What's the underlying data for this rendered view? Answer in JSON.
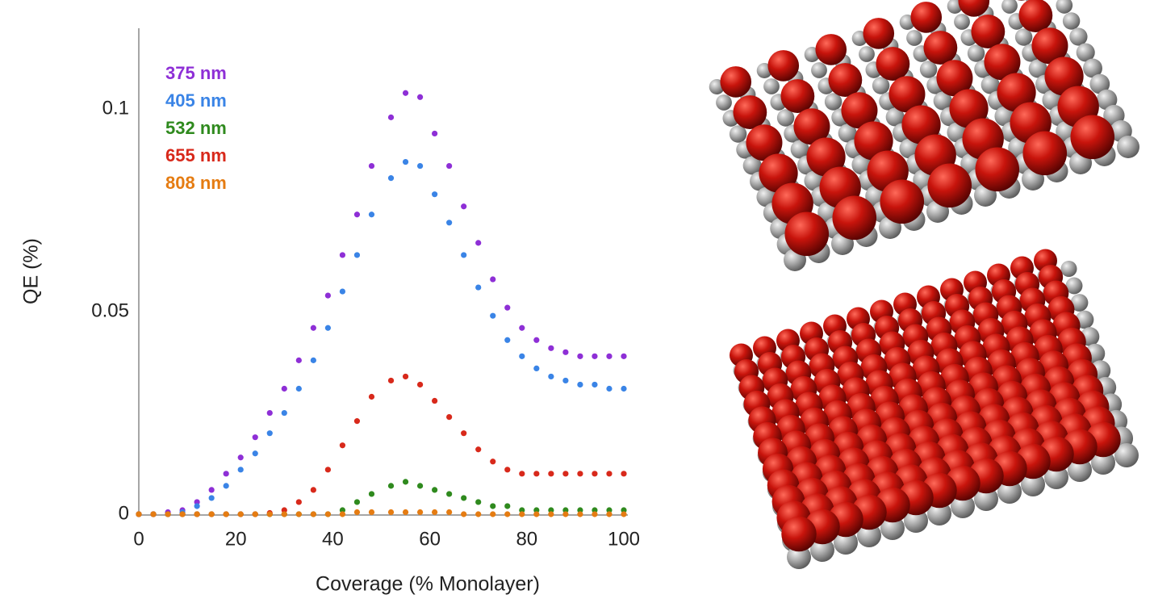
{
  "chart_data": {
    "type": "scatter",
    "xlabel": "Coverage (% Monolayer)",
    "ylabel": "QE (%)",
    "x": [
      0,
      3,
      6,
      9,
      12,
      15,
      18,
      21,
      24,
      27,
      30,
      33,
      36,
      39,
      42,
      45,
      48,
      52,
      55,
      58,
      61,
      64,
      67,
      70,
      73,
      76,
      79,
      82,
      85,
      88,
      91,
      94,
      97,
      100
    ],
    "series": [
      {
        "name": "375 nm",
        "color": "#8e2fd6",
        "values": [
          0,
          0,
          0.0005,
          0.001,
          0.003,
          0.006,
          0.01,
          0.014,
          0.019,
          0.025,
          0.031,
          0.038,
          0.046,
          0.054,
          0.064,
          0.074,
          0.086,
          0.098,
          0.104,
          0.103,
          0.094,
          0.086,
          0.076,
          0.067,
          0.058,
          0.051,
          0.046,
          0.043,
          0.041,
          0.04,
          0.039,
          0.039,
          0.039,
          0.039
        ]
      },
      {
        "name": "405 nm",
        "color": "#3a84e6",
        "values": [
          0,
          0,
          0,
          0.0005,
          0.002,
          0.004,
          0.007,
          0.011,
          0.015,
          0.02,
          0.025,
          0.031,
          0.038,
          0.046,
          0.055,
          0.064,
          0.074,
          0.083,
          0.087,
          0.086,
          0.079,
          0.072,
          0.064,
          0.056,
          0.049,
          0.043,
          0.039,
          0.036,
          0.034,
          0.033,
          0.032,
          0.032,
          0.031,
          0.031
        ]
      },
      {
        "name": "532 nm",
        "color": "#2f8a1e",
        "values": [
          0,
          0,
          0,
          0,
          0,
          0,
          0,
          0,
          0,
          0,
          0,
          0,
          0,
          0,
          0.001,
          0.003,
          0.005,
          0.007,
          0.008,
          0.007,
          0.006,
          0.005,
          0.004,
          0.003,
          0.002,
          0.002,
          0.001,
          0.001,
          0.001,
          0.001,
          0.001,
          0.001,
          0.001,
          0.001
        ]
      },
      {
        "name": "655 nm",
        "color": "#d8291b",
        "values": [
          0,
          0,
          0,
          0,
          0,
          0,
          0,
          0,
          0,
          0.0003,
          0.001,
          0.003,
          0.006,
          0.011,
          0.017,
          0.023,
          0.029,
          0.033,
          0.034,
          0.032,
          0.028,
          0.024,
          0.02,
          0.016,
          0.013,
          0.011,
          0.01,
          0.01,
          0.01,
          0.01,
          0.01,
          0.01,
          0.01,
          0.01
        ]
      },
      {
        "name": "808 nm",
        "color": "#e57c12",
        "values": [
          0,
          0,
          0,
          0,
          0,
          0,
          0,
          0,
          0,
          0,
          0,
          0,
          0,
          0,
          0,
          0.0005,
          0.0005,
          0.0005,
          0.0005,
          0.0005,
          0.0005,
          0.0005,
          0,
          0,
          0,
          0,
          0,
          0,
          0,
          0,
          0,
          0,
          0,
          0
        ]
      }
    ],
    "xlim": [
      0,
      100
    ],
    "ylim": [
      0,
      0.12
    ],
    "xticks": [
      0,
      20,
      40,
      60,
      80,
      100
    ],
    "yticks": [
      0,
      0.05,
      0.1
    ],
    "legend": "upper-left",
    "grid": false
  }
}
